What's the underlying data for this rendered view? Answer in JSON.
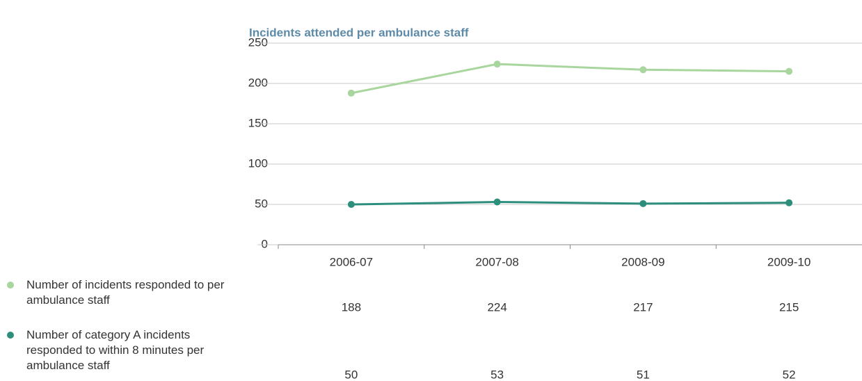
{
  "chart_data": {
    "type": "line",
    "title": "Incidents attended per ambulance staff",
    "categories": [
      "2006-07",
      "2007-08",
      "2008-09",
      "2009-10"
    ],
    "series": [
      {
        "name": "Number of incidents responded to per ambulance staff",
        "color": "#a8d69e",
        "values": [
          188,
          224,
          217,
          215
        ]
      },
      {
        "name": "Number of category A incidents responded to within 8 minutes per ambulance staff",
        "color": "#2e8e7c",
        "values": [
          50,
          53,
          51,
          52
        ]
      }
    ],
    "ylim": [
      0,
      250
    ],
    "yticks": [
      0,
      50,
      100,
      150,
      200,
      250
    ],
    "grid": true
  }
}
